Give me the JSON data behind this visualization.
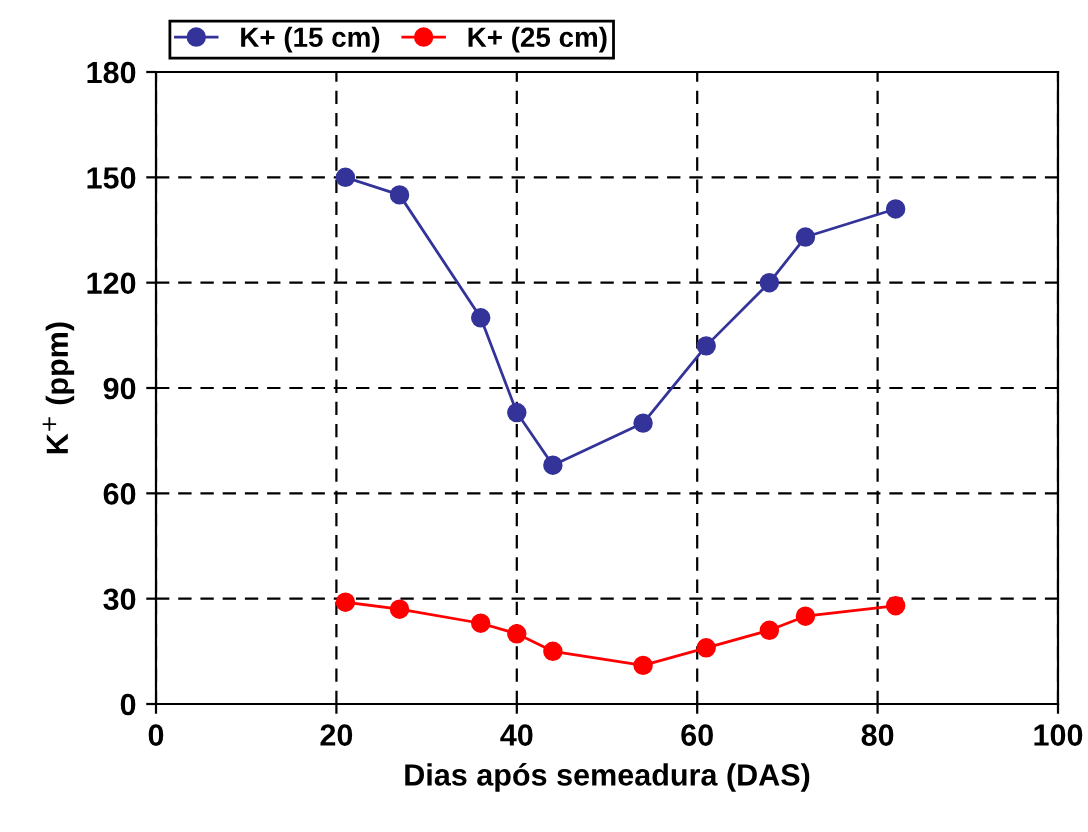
{
  "chart_data": {
    "type": "line",
    "xlabel": "Dias após semeadura (DAS)",
    "ylabel": "K$^{+}$ (ppm)",
    "x": [
      21,
      27,
      36,
      40,
      44,
      54,
      61,
      68,
      72,
      82
    ],
    "series": [
      {
        "name": "K+ (15 cm)",
        "color": "#333399",
        "values": [
          150,
          145,
          110,
          83,
          68,
          80,
          102,
          120,
          133,
          141
        ]
      },
      {
        "name": "K+ (25 cm)",
        "color": "#ff0000",
        "values": [
          29,
          27,
          23,
          20,
          15,
          11,
          16,
          21,
          25,
          28
        ]
      }
    ],
    "xlim": [
      0,
      100
    ],
    "xticks": [
      0,
      20,
      40,
      60,
      80,
      100
    ],
    "ylim": [
      0,
      180
    ],
    "yticks": [
      0,
      30,
      60,
      90,
      120,
      150,
      180
    ],
    "grid": true,
    "legend": "top left",
    "marker": "circle",
    "line_style": "solid"
  }
}
